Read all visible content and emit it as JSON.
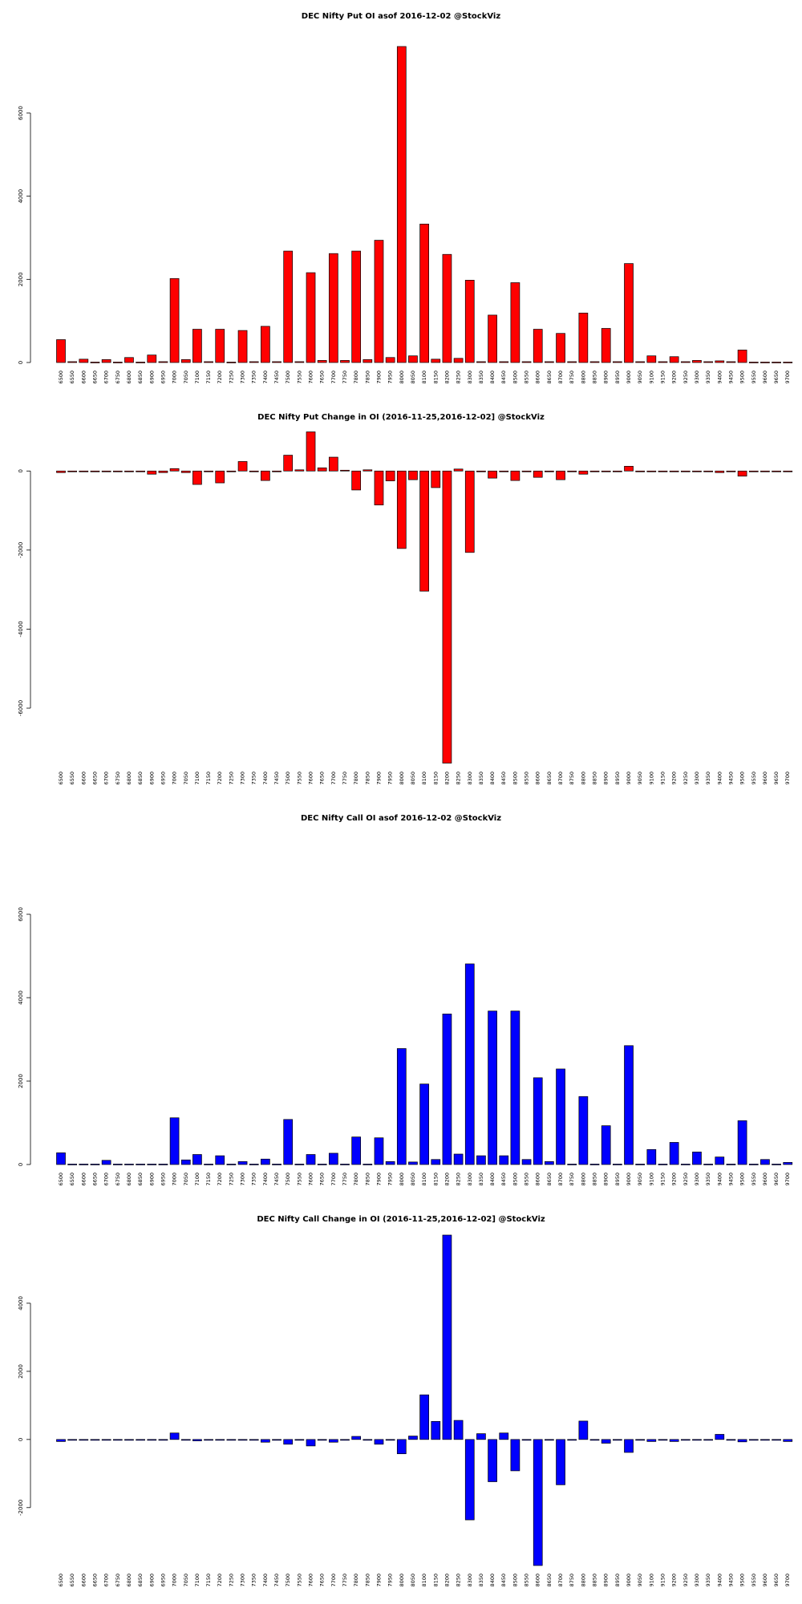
{
  "chart_data": [
    {
      "type": "bar",
      "title": "DEC Nifty Put OI asof 2016-12-02 @StockViz",
      "color": "#ff0000",
      "ylim": [
        0,
        7600
      ],
      "yticks": [
        0,
        2000,
        4000,
        6000
      ],
      "categories": [
        "6500",
        "6550",
        "6600",
        "6650",
        "6700",
        "6750",
        "6800",
        "6850",
        "6900",
        "6950",
        "7000",
        "7050",
        "7100",
        "7150",
        "7200",
        "7250",
        "7300",
        "7350",
        "7400",
        "7450",
        "7500",
        "7550",
        "7600",
        "7650",
        "7700",
        "7750",
        "7800",
        "7850",
        "7900",
        "7950",
        "8000",
        "8050",
        "8100",
        "8150",
        "8200",
        "8250",
        "8300",
        "8350",
        "8400",
        "8450",
        "8500",
        "8550",
        "8600",
        "8650",
        "8700",
        "8750",
        "8800",
        "8850",
        "8900",
        "8950",
        "9000",
        "9050",
        "9100",
        "9150",
        "9200",
        "9250",
        "9300",
        "9350",
        "9400",
        "9450",
        "9500",
        "9550",
        "9600",
        "9650",
        "9700"
      ],
      "values": [
        550,
        20,
        80,
        10,
        70,
        10,
        120,
        10,
        180,
        20,
        2020,
        70,
        800,
        20,
        800,
        10,
        770,
        20,
        870,
        20,
        2680,
        20,
        2160,
        50,
        2620,
        50,
        2680,
        70,
        2940,
        120,
        7600,
        160,
        3330,
        80,
        2600,
        100,
        1980,
        20,
        1140,
        20,
        1920,
        20,
        800,
        20,
        700,
        20,
        1190,
        20,
        820,
        20,
        2380,
        20,
        160,
        20,
        140,
        20,
        50,
        20,
        40,
        20,
        300,
        10,
        10,
        10,
        10
      ]
    },
    {
      "type": "bar",
      "title": "DEC Nifty Put Change in OI (2016-11-25,2016-12-02] @StockViz",
      "color": "#ff0000",
      "ylim": [
        -7400,
        1000
      ],
      "yticks": [
        -6000,
        -4000,
        -2000,
        0
      ],
      "categories": [
        "6500",
        "6550",
        "6600",
        "6650",
        "6700",
        "6750",
        "6800",
        "6850",
        "6900",
        "6950",
        "7000",
        "7050",
        "7100",
        "7150",
        "7200",
        "7250",
        "7300",
        "7350",
        "7400",
        "7450",
        "7500",
        "7550",
        "7600",
        "7650",
        "7700",
        "7750",
        "7800",
        "7850",
        "7900",
        "7950",
        "8000",
        "8050",
        "8100",
        "8150",
        "8200",
        "8250",
        "8300",
        "8350",
        "8400",
        "8450",
        "8500",
        "8550",
        "8600",
        "8650",
        "8700",
        "8750",
        "8800",
        "8850",
        "8900",
        "8950",
        "9000",
        "9050",
        "9100",
        "9150",
        "9200",
        "9250",
        "9300",
        "9350",
        "9400",
        "9450",
        "9500",
        "9550",
        "9600",
        "9650",
        "9700"
      ],
      "values": [
        -40,
        -10,
        -10,
        -10,
        -10,
        -10,
        -10,
        -10,
        -80,
        -40,
        60,
        -40,
        -340,
        -10,
        -300,
        -10,
        240,
        -10,
        -240,
        -10,
        400,
        30,
        990,
        80,
        350,
        20,
        -480,
        30,
        -860,
        -250,
        -1960,
        -220,
        -3040,
        -420,
        -7390,
        50,
        -2060,
        -20,
        -180,
        -20,
        -240,
        -20,
        -160,
        -20,
        -220,
        -20,
        -80,
        -10,
        -20,
        -20,
        120,
        -10,
        -10,
        -10,
        -10,
        -10,
        -10,
        -10,
        -40,
        -10,
        -130,
        -10,
        -10,
        -10,
        -10
      ]
    },
    {
      "type": "bar",
      "title": "DEC Nifty Call OI asof 2016-12-02 @StockViz",
      "color": "#0000ff",
      "ylim": [
        0,
        6000
      ],
      "yticks": [
        0,
        2000,
        4000,
        6000
      ],
      "categories": [
        "6500",
        "6550",
        "6600",
        "6650",
        "6700",
        "6750",
        "6800",
        "6850",
        "6900",
        "6950",
        "7000",
        "7050",
        "7100",
        "7150",
        "7200",
        "7250",
        "7300",
        "7350",
        "7400",
        "7450",
        "7500",
        "7550",
        "7600",
        "7650",
        "7700",
        "7750",
        "7800",
        "7850",
        "7900",
        "7950",
        "8000",
        "8050",
        "8100",
        "8150",
        "8200",
        "8250",
        "8300",
        "8350",
        "8400",
        "8450",
        "8500",
        "8550",
        "8600",
        "8650",
        "8700",
        "8750",
        "8800",
        "8850",
        "8900",
        "8950",
        "9000",
        "9050",
        "9100",
        "9150",
        "9200",
        "9250",
        "9300",
        "9350",
        "9400",
        "9450",
        "9500",
        "9550",
        "9600",
        "9650",
        "9700"
      ],
      "values": [
        280,
        10,
        10,
        10,
        100,
        10,
        10,
        10,
        10,
        10,
        1120,
        110,
        240,
        10,
        210,
        10,
        70,
        10,
        130,
        10,
        1080,
        10,
        240,
        10,
        270,
        10,
        660,
        10,
        640,
        70,
        2780,
        60,
        1930,
        120,
        3610,
        250,
        4810,
        210,
        3680,
        210,
        3680,
        120,
        2080,
        70,
        2290,
        10,
        1630,
        10,
        930,
        10,
        2850,
        10,
        360,
        10,
        530,
        10,
        300,
        10,
        180,
        10,
        1050,
        10,
        120,
        10,
        50
      ]
    },
    {
      "type": "bar",
      "title": "DEC Nifty Call Change in OI (2016-11-25,2016-12-02] @StockViz",
      "color": "#0000ff",
      "ylim": [
        -3700,
        6000
      ],
      "yticks": [
        -2000,
        0,
        2000,
        4000
      ],
      "categories": [
        "6500",
        "6550",
        "6600",
        "6650",
        "6700",
        "6750",
        "6800",
        "6850",
        "6900",
        "6950",
        "7000",
        "7050",
        "7100",
        "7150",
        "7200",
        "7250",
        "7300",
        "7350",
        "7400",
        "7450",
        "7500",
        "7550",
        "7600",
        "7650",
        "7700",
        "7750",
        "7800",
        "7850",
        "7900",
        "7950",
        "8000",
        "8050",
        "8100",
        "8150",
        "8200",
        "8250",
        "8300",
        "8350",
        "8400",
        "8450",
        "8500",
        "8550",
        "8600",
        "8650",
        "8700",
        "8750",
        "8800",
        "8850",
        "8900",
        "8950",
        "9000",
        "9050",
        "9100",
        "9150",
        "9200",
        "9250",
        "9300",
        "9350",
        "9400",
        "9450",
        "9500",
        "9550",
        "9600",
        "9650",
        "9700"
      ],
      "values": [
        -60,
        -10,
        -10,
        -10,
        -10,
        -10,
        -10,
        -10,
        -10,
        -10,
        190,
        -10,
        -40,
        -10,
        -10,
        -10,
        -10,
        -10,
        -80,
        -10,
        -140,
        -10,
        -190,
        -10,
        -80,
        -10,
        90,
        -10,
        -140,
        -10,
        -420,
        100,
        1310,
        530,
        6000,
        560,
        -2360,
        170,
        -1240,
        190,
        -920,
        -10,
        -3700,
        -10,
        -1330,
        -10,
        540,
        -10,
        -110,
        -10,
        -380,
        -10,
        -60,
        -10,
        -60,
        -10,
        -10,
        -10,
        150,
        -10,
        -70,
        -10,
        -10,
        -10,
        -60
      ]
    }
  ]
}
